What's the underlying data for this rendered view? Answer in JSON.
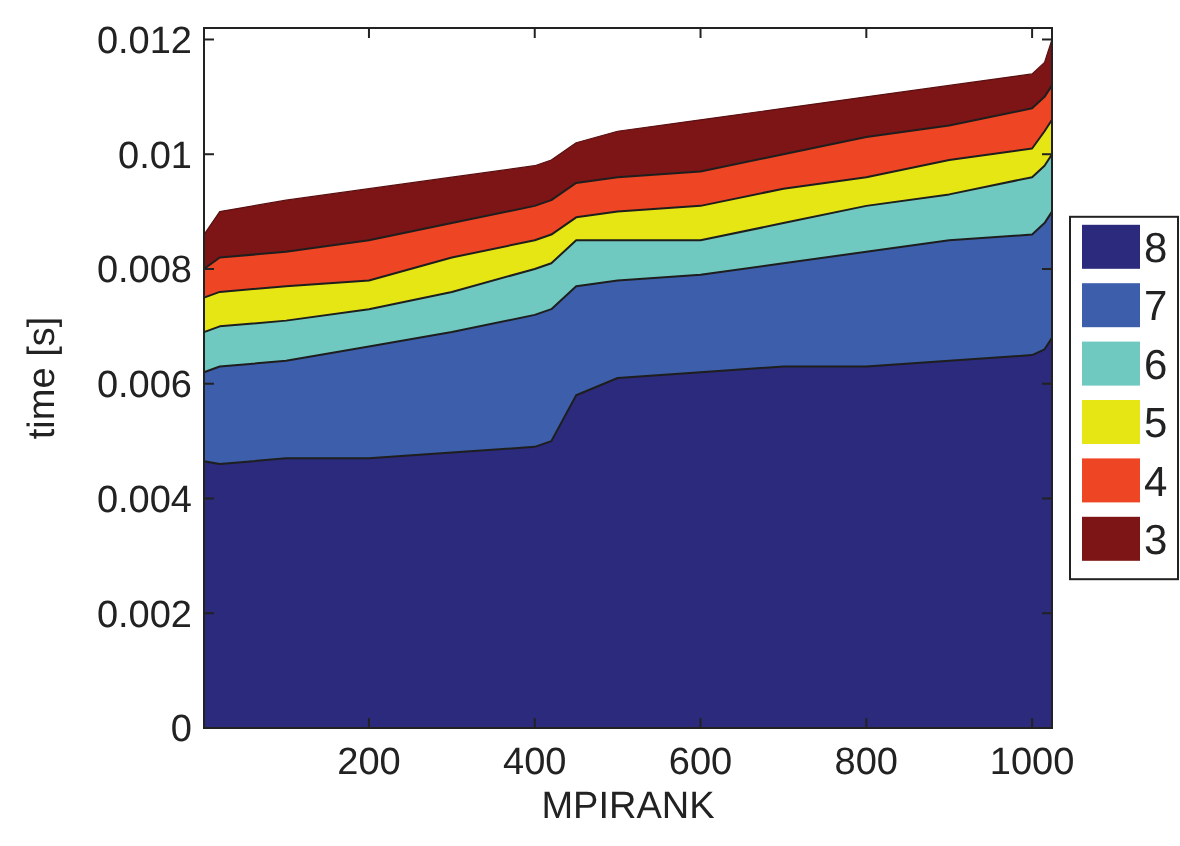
{
  "chart_data": {
    "type": "area",
    "stacked": true,
    "xlabel": "MPIRANK",
    "ylabel": "time [s]",
    "xlim": [
      1,
      1024
    ],
    "ylim": [
      0,
      0.0122
    ],
    "xticks": [
      200,
      400,
      600,
      800,
      1000
    ],
    "yticks": [
      0,
      0.002,
      0.004,
      0.006,
      0.008,
      0.01,
      0.012
    ],
    "legend": "right",
    "grid": false,
    "x": [
      1,
      20,
      100,
      200,
      300,
      400,
      420,
      450,
      500,
      600,
      700,
      800,
      900,
      1000,
      1015,
      1024
    ],
    "series": [
      {
        "name": "8",
        "color": "#2b2a7c",
        "values": [
          0.00465,
          0.0046,
          0.0047,
          0.0047,
          0.0048,
          0.0049,
          0.005,
          0.0058,
          0.0061,
          0.0062,
          0.0063,
          0.0063,
          0.0064,
          0.0065,
          0.0066,
          0.0068
        ]
      },
      {
        "name": "7",
        "color": "#3d5fab",
        "values": [
          0.00155,
          0.0017,
          0.0017,
          0.00195,
          0.0021,
          0.0023,
          0.0023,
          0.0019,
          0.0017,
          0.0017,
          0.0018,
          0.002,
          0.0021,
          0.0021,
          0.0022,
          0.0022
        ]
      },
      {
        "name": "6",
        "color": "#6fc9c0",
        "values": [
          0.0007,
          0.0007,
          0.0007,
          0.00065,
          0.0007,
          0.0008,
          0.0008,
          0.0008,
          0.0007,
          0.0006,
          0.0007,
          0.0008,
          0.0008,
          0.001,
          0.001,
          0.001
        ]
      },
      {
        "name": "5",
        "color": "#e6e615",
        "values": [
          0.0006,
          0.0006,
          0.0006,
          0.0005,
          0.0006,
          0.0005,
          0.0005,
          0.0004,
          0.0005,
          0.0006,
          0.0006,
          0.0005,
          0.0006,
          0.0005,
          0.0006,
          0.0006
        ]
      },
      {
        "name": "4",
        "color": "#ee4524",
        "values": [
          0.0005,
          0.0006,
          0.0006,
          0.0007,
          0.0006,
          0.0006,
          0.0006,
          0.0006,
          0.0006,
          0.0006,
          0.0006,
          0.0007,
          0.0006,
          0.0007,
          0.0006,
          0.0006
        ]
      },
      {
        "name": "3",
        "color": "#7d1416",
        "values": [
          0.0006,
          0.0008,
          0.0009,
          0.0009,
          0.0008,
          0.0007,
          0.0007,
          0.0007,
          0.0008,
          0.0009,
          0.0008,
          0.0007,
          0.0007,
          0.0006,
          0.0006,
          0.0008
        ]
      }
    ]
  }
}
